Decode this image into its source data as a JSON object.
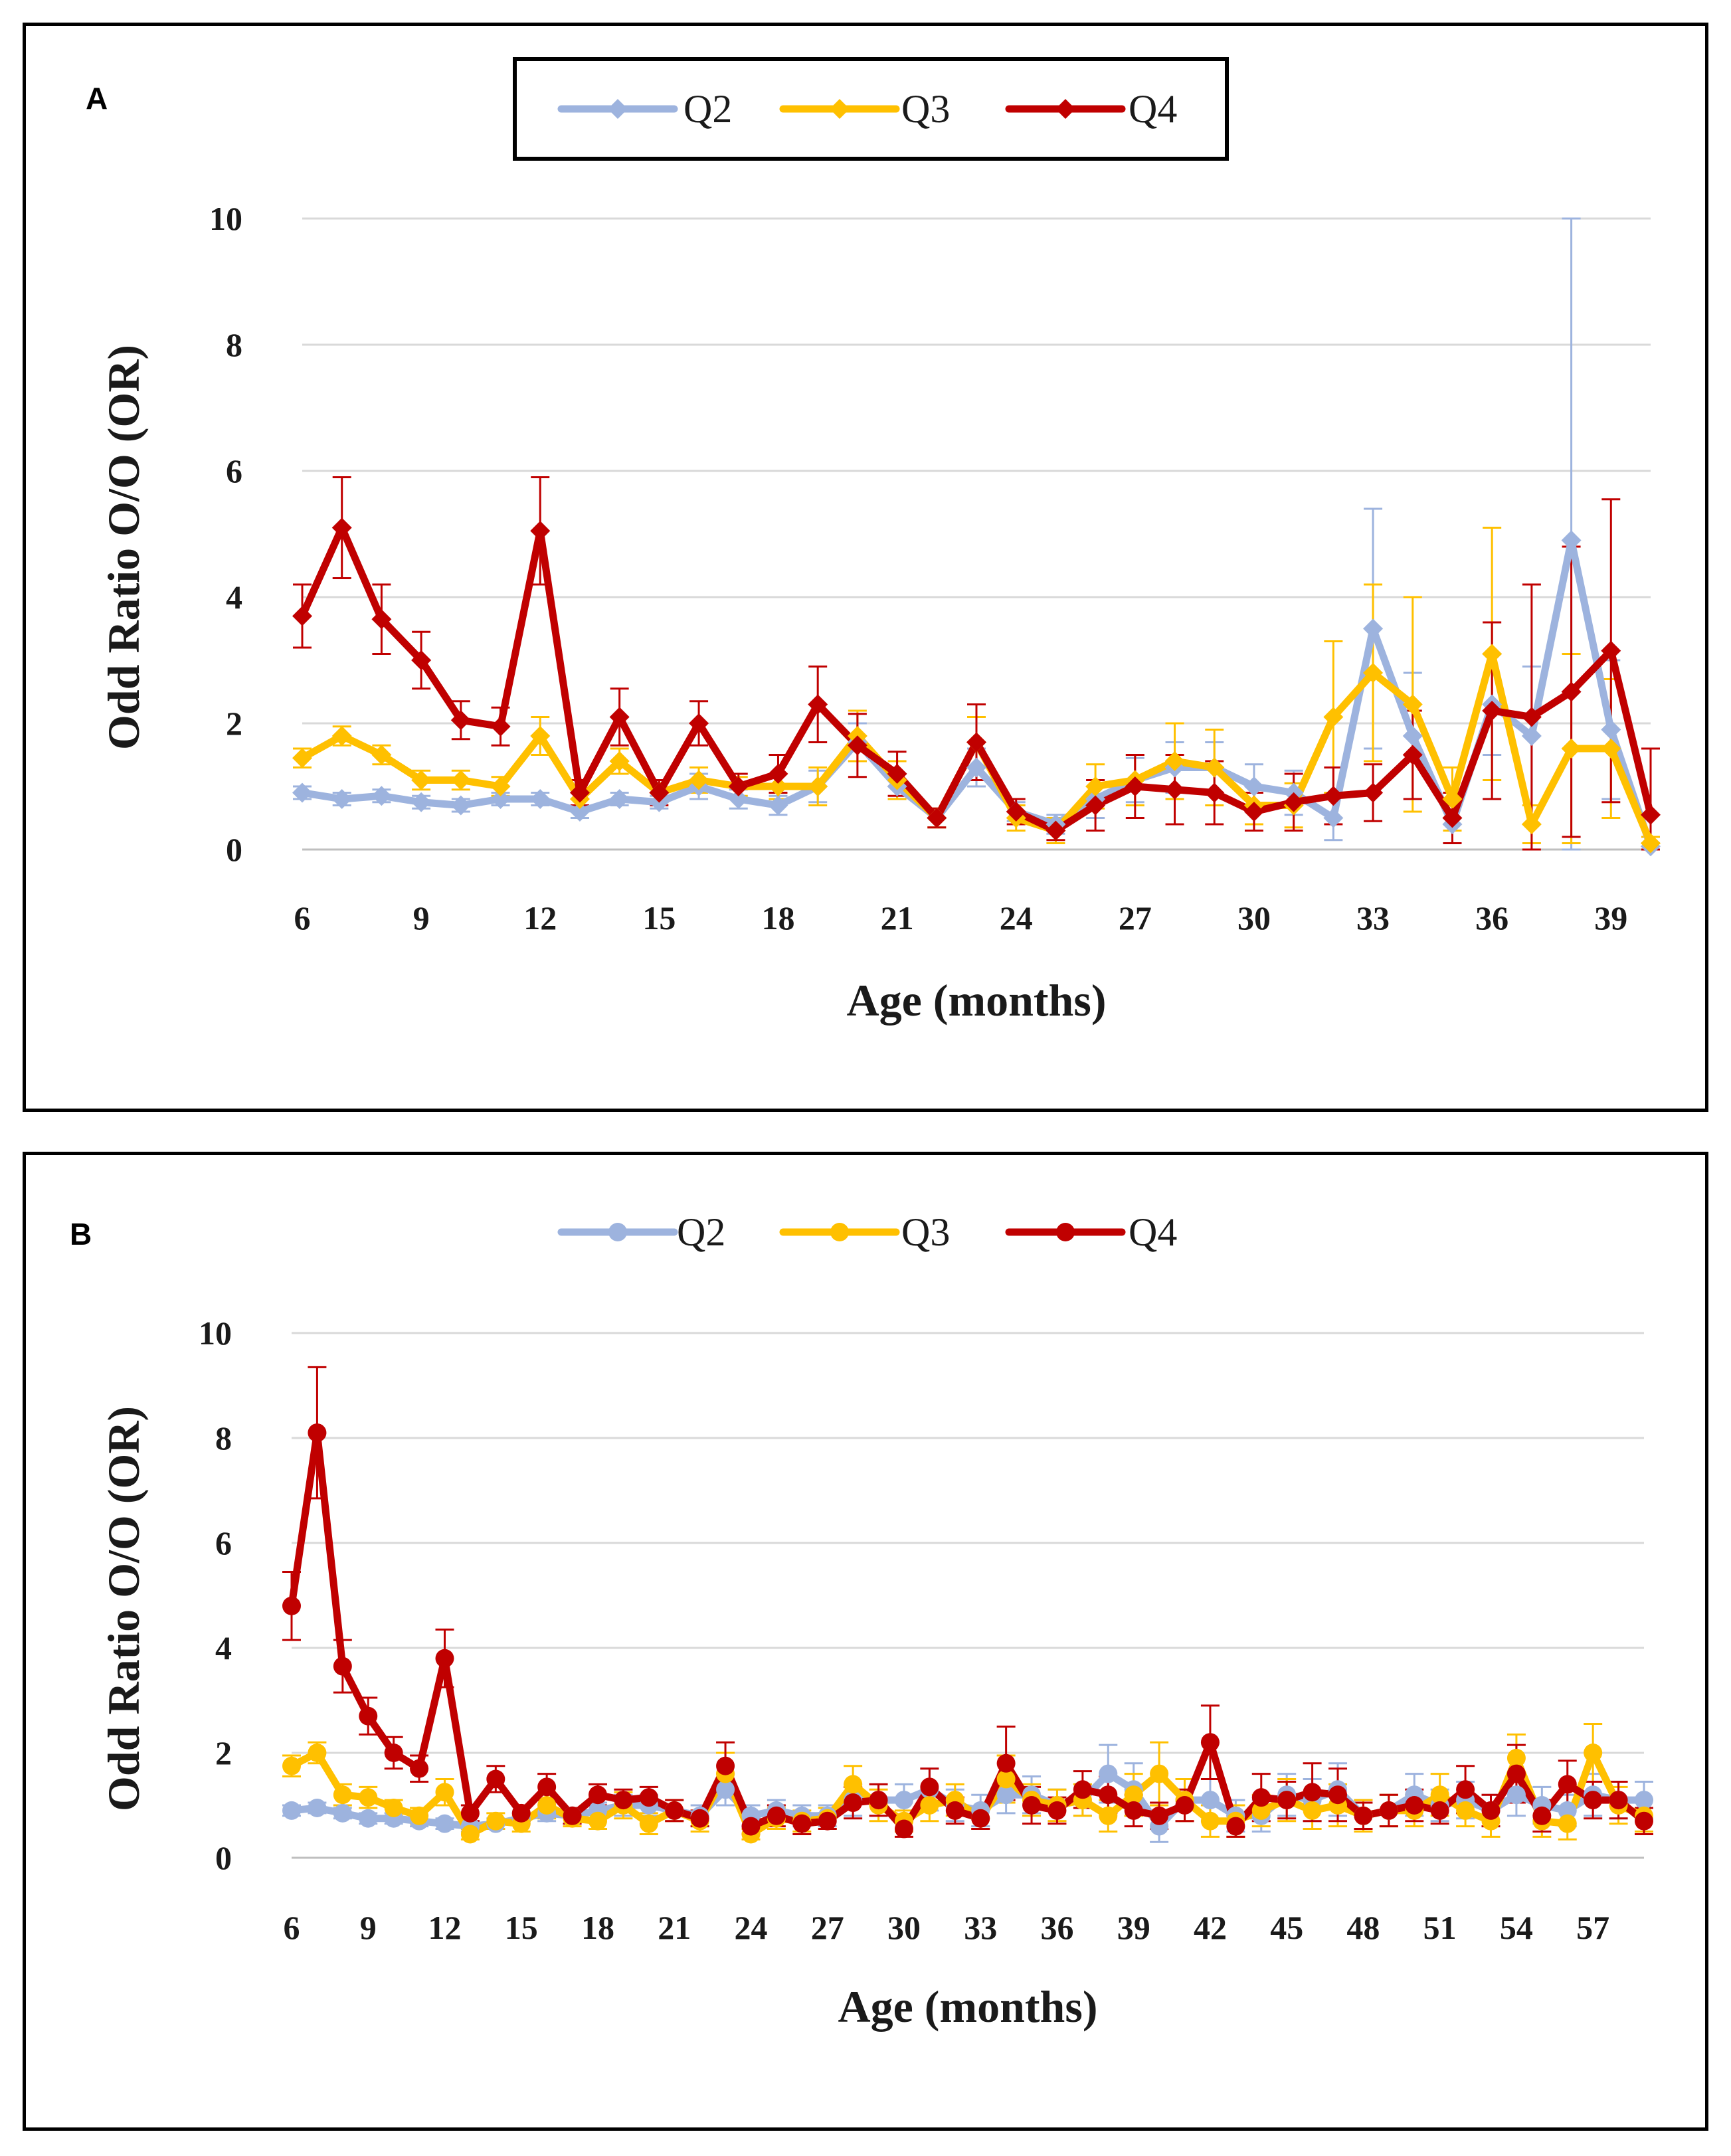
{
  "colors": {
    "Q2": "#9DB3DE",
    "Q3": "#FFC000",
    "Q4": "#C00000",
    "grid": "#d9d9d9",
    "axis": "#bfbfbf"
  },
  "chart_data": [
    {
      "type": "line",
      "panel_label": "A",
      "xlabel": "Age  (months)",
      "ylabel": "Odd Ratio O/O  (OR)",
      "xlim": [
        6,
        40
      ],
      "ylim": [
        0,
        10
      ],
      "x_ticks": [
        6,
        9,
        12,
        15,
        18,
        21,
        24,
        27,
        30,
        33,
        36,
        39
      ],
      "y_ticks": [
        0,
        2,
        4,
        6,
        8,
        10
      ],
      "grid": "horizontal",
      "legend": "top-center",
      "marker": "diamond",
      "legend_boxed": true,
      "x": [
        6,
        7,
        8,
        9,
        10,
        11,
        12,
        13,
        14,
        15,
        16,
        17,
        18,
        19,
        20,
        21,
        22,
        23,
        24,
        25,
        26,
        27,
        28,
        29,
        30,
        31,
        32,
        33,
        34,
        35,
        36,
        37,
        38,
        39,
        40
      ],
      "series": [
        {
          "name": "Q2",
          "values": [
            0.9,
            0.8,
            0.85,
            0.75,
            0.7,
            0.8,
            0.8,
            0.6,
            0.8,
            0.75,
            1.0,
            0.8,
            0.7,
            1.0,
            1.7,
            1.0,
            0.5,
            1.3,
            0.6,
            0.4,
            0.8,
            1.1,
            1.3,
            1.3,
            1.0,
            0.9,
            0.5,
            3.5,
            1.8,
            0.4,
            2.3,
            1.8,
            4.9,
            1.9,
            0.05
          ],
          "error": [
            0.1,
            0.1,
            0.1,
            0.1,
            0.1,
            0.1,
            0.1,
            0.1,
            0.1,
            0.1,
            0.2,
            0.15,
            0.15,
            0.25,
            0.3,
            0.2,
            0.15,
            0.3,
            0.15,
            0.15,
            0.3,
            0.35,
            0.4,
            0.4,
            0.35,
            0.35,
            0.35,
            1.9,
            1.0,
            0.3,
            0.8,
            1.1,
            5.6,
            1.1,
            0.05
          ]
        },
        {
          "name": "Q3",
          "values": [
            1.45,
            1.8,
            1.5,
            1.1,
            1.1,
            1.0,
            1.8,
            0.8,
            1.4,
            0.9,
            1.1,
            1.0,
            1.0,
            1.0,
            1.8,
            1.1,
            0.5,
            1.7,
            0.5,
            0.3,
            1.0,
            1.1,
            1.4,
            1.3,
            0.7,
            0.7,
            2.1,
            2.8,
            2.3,
            0.8,
            3.1,
            0.4,
            1.6,
            1.6,
            0.1
          ],
          "error": [
            0.15,
            0.15,
            0.15,
            0.15,
            0.15,
            0.15,
            0.3,
            0.15,
            0.2,
            0.15,
            0.2,
            0.15,
            0.2,
            0.3,
            0.4,
            0.3,
            0.15,
            0.4,
            0.2,
            0.2,
            0.35,
            0.4,
            0.6,
            0.6,
            0.3,
            0.35,
            1.2,
            1.4,
            1.7,
            0.5,
            2.0,
            0.3,
            1.5,
            1.1,
            0.1
          ]
        },
        {
          "name": "Q4",
          "values": [
            3.7,
            5.1,
            3.65,
            3.0,
            2.05,
            1.95,
            5.05,
            0.9,
            2.1,
            0.9,
            2.0,
            1.0,
            1.2,
            2.3,
            1.65,
            1.2,
            0.5,
            1.7,
            0.6,
            0.3,
            0.7,
            1.0,
            0.95,
            0.9,
            0.6,
            0.75,
            0.85,
            0.9,
            1.5,
            0.5,
            2.2,
            2.1,
            2.5,
            3.15,
            0.55
          ],
          "error": [
            0.5,
            0.8,
            0.55,
            0.45,
            0.3,
            0.3,
            0.85,
            0.2,
            0.45,
            0.2,
            0.35,
            0.2,
            0.3,
            0.6,
            0.5,
            0.35,
            0.15,
            0.6,
            0.2,
            0.15,
            0.4,
            0.5,
            0.55,
            0.5,
            0.3,
            0.45,
            0.45,
            0.45,
            0.7,
            0.4,
            1.4,
            2.1,
            2.3,
            2.4,
            1.05
          ]
        }
      ]
    },
    {
      "type": "line",
      "panel_label": "B",
      "xlabel": "Age (months)",
      "ylabel": "Odd Ratio O/O  (OR)",
      "xlim": [
        6,
        59
      ],
      "ylim": [
        0,
        10
      ],
      "x_ticks": [
        6,
        9,
        12,
        15,
        18,
        21,
        24,
        27,
        30,
        33,
        36,
        39,
        42,
        45,
        48,
        51,
        54,
        57
      ],
      "y_ticks": [
        0,
        2,
        4,
        6,
        8,
        10
      ],
      "grid": "horizontal",
      "legend": "top-center",
      "marker": "circle",
      "legend_boxed": false,
      "x": [
        6,
        7,
        8,
        9,
        10,
        11,
        12,
        13,
        14,
        15,
        16,
        17,
        18,
        19,
        20,
        21,
        22,
        23,
        24,
        25,
        26,
        27,
        28,
        29,
        30,
        31,
        32,
        33,
        34,
        35,
        36,
        37,
        38,
        39,
        40,
        41,
        42,
        43,
        44,
        45,
        46,
        47,
        48,
        49,
        50,
        51,
        52,
        53,
        54,
        55,
        56,
        57,
        58,
        59
      ],
      "series": [
        {
          "name": "Q2",
          "values": [
            0.9,
            0.95,
            0.85,
            0.75,
            0.75,
            0.7,
            0.65,
            0.6,
            0.65,
            0.75,
            0.85,
            0.8,
            0.9,
            1.0,
            1.0,
            0.9,
            0.8,
            1.3,
            0.8,
            0.9,
            0.8,
            0.8,
            1.1,
            1.1,
            1.1,
            1.3,
            1.0,
            0.9,
            1.2,
            1.2,
            1.0,
            1.1,
            1.6,
            1.3,
            0.6,
            1.1,
            1.1,
            0.8,
            0.8,
            1.2,
            1.1,
            1.3,
            0.8,
            0.9,
            1.2,
            1.0,
            1.1,
            0.9,
            1.2,
            1.0,
            0.9,
            1.2,
            1.1,
            1.1
          ],
          "error": [
            0.1,
            0.1,
            0.1,
            0.1,
            0.1,
            0.1,
            0.1,
            0.1,
            0.1,
            0.1,
            0.15,
            0.15,
            0.15,
            0.2,
            0.2,
            0.2,
            0.2,
            0.3,
            0.2,
            0.2,
            0.2,
            0.2,
            0.3,
            0.3,
            0.3,
            0.4,
            0.3,
            0.3,
            0.35,
            0.35,
            0.3,
            0.3,
            0.55,
            0.5,
            0.3,
            0.4,
            0.4,
            0.3,
            0.3,
            0.4,
            0.4,
            0.5,
            0.3,
            0.3,
            0.4,
            0.3,
            0.35,
            0.3,
            0.4,
            0.35,
            0.3,
            0.4,
            0.35,
            0.35
          ]
        },
        {
          "name": "Q3",
          "values": [
            1.75,
            2.0,
            1.2,
            1.15,
            0.95,
            0.8,
            1.25,
            0.45,
            0.7,
            0.65,
            1.0,
            0.75,
            0.7,
            1.0,
            0.65,
            0.9,
            0.7,
            1.6,
            0.45,
            0.75,
            0.7,
            0.75,
            1.4,
            1.0,
            0.7,
            1.0,
            1.1,
            0.75,
            1.5,
            1.1,
            1.0,
            1.1,
            0.8,
            1.2,
            1.6,
            1.1,
            0.7,
            0.7,
            0.9,
            1.1,
            0.9,
            1.0,
            0.8,
            0.9,
            0.9,
            1.2,
            0.9,
            0.7,
            1.9,
            0.7,
            0.65,
            2.0,
            1.0,
            0.8
          ],
          "error": [
            0.2,
            0.2,
            0.2,
            0.2,
            0.15,
            0.15,
            0.25,
            0.1,
            0.15,
            0.15,
            0.25,
            0.15,
            0.15,
            0.25,
            0.2,
            0.2,
            0.2,
            0.4,
            0.1,
            0.2,
            0.2,
            0.2,
            0.35,
            0.3,
            0.2,
            0.3,
            0.3,
            0.2,
            0.45,
            0.3,
            0.3,
            0.3,
            0.3,
            0.4,
            0.6,
            0.4,
            0.3,
            0.3,
            0.3,
            0.4,
            0.35,
            0.4,
            0.3,
            0.3,
            0.3,
            0.4,
            0.3,
            0.3,
            0.45,
            0.3,
            0.3,
            0.55,
            0.35,
            0.3
          ]
        },
        {
          "name": "Q4",
          "values": [
            4.8,
            8.1,
            3.65,
            2.7,
            2.0,
            1.7,
            3.8,
            0.85,
            1.5,
            0.85,
            1.35,
            0.8,
            1.2,
            1.1,
            1.15,
            0.9,
            0.75,
            1.75,
            0.6,
            0.8,
            0.65,
            0.7,
            1.05,
            1.1,
            0.55,
            1.35,
            0.9,
            0.75,
            1.8,
            1.0,
            0.9,
            1.3,
            1.2,
            0.9,
            0.8,
            1.0,
            2.2,
            0.6,
            1.15,
            1.1,
            1.25,
            1.2,
            0.8,
            0.9,
            1.0,
            0.9,
            1.3,
            0.9,
            1.6,
            0.8,
            1.4,
            1.1,
            1.1,
            0.7
          ],
          "error": [
            0.65,
            1.25,
            0.5,
            0.35,
            0.3,
            0.25,
            0.55,
            0.15,
            0.25,
            0.15,
            0.25,
            0.15,
            0.2,
            0.2,
            0.2,
            0.2,
            0.15,
            0.45,
            0.15,
            0.2,
            0.2,
            0.15,
            0.3,
            0.3,
            0.15,
            0.35,
            0.25,
            0.2,
            0.7,
            0.35,
            0.25,
            0.35,
            0.35,
            0.3,
            0.25,
            0.3,
            0.7,
            0.2,
            0.45,
            0.35,
            0.55,
            0.5,
            0.25,
            0.3,
            0.3,
            0.25,
            0.45,
            0.3,
            0.55,
            0.3,
            0.45,
            0.35,
            0.35,
            0.25
          ]
        }
      ]
    }
  ]
}
